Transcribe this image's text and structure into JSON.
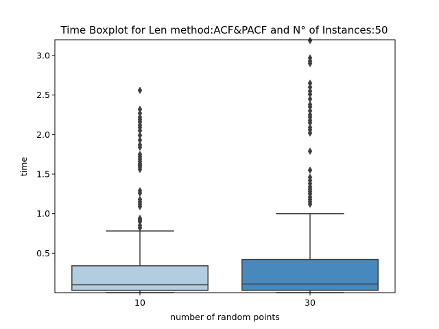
{
  "chart_data": {
    "type": "boxplot",
    "title": "Time Boxplot for Len method:ACF&PACF and N° of Instances:50",
    "xlabel": "number of random points",
    "ylabel": "time",
    "ylim": [
      0.0,
      3.2
    ],
    "yticks": [
      "0.5",
      "1.0",
      "1.5",
      "2.0",
      "2.5",
      "3.0"
    ],
    "grid": false,
    "categories": [
      "10",
      "30"
    ],
    "colors": [
      "#b3cde0",
      "#4789bd"
    ],
    "edge_color": "#3f3f3f",
    "series": [
      {
        "category": "10",
        "whisker_low": 0.0,
        "q1": 0.03,
        "median": 0.1,
        "q3": 0.34,
        "whisker_high": 0.78,
        "outliers": [
          0.82,
          0.85,
          0.9,
          0.92,
          0.94,
          1.09,
          1.12,
          1.15,
          1.18,
          1.26,
          1.29,
          1.56,
          1.59,
          1.61,
          1.63,
          1.66,
          1.69,
          1.72,
          1.75,
          1.84,
          1.87,
          1.93,
          1.99,
          2.05,
          2.09,
          2.12,
          2.16,
          2.19,
          2.22,
          2.27,
          2.32,
          2.56
        ]
      },
      {
        "category": "30",
        "whisker_low": 0.0,
        "q1": 0.03,
        "median": 0.11,
        "q3": 0.42,
        "whisker_high": 1.0,
        "outliers": [
          1.12,
          1.15,
          1.18,
          1.21,
          1.25,
          1.28,
          1.31,
          1.34,
          1.38,
          1.42,
          1.46,
          1.55,
          1.79,
          2.02,
          2.06,
          2.09,
          2.15,
          2.18,
          2.22,
          2.25,
          2.3,
          2.35,
          2.38,
          2.45,
          2.51,
          2.55,
          2.6,
          2.65,
          2.9,
          2.93,
          2.97,
          3.19
        ]
      }
    ]
  }
}
